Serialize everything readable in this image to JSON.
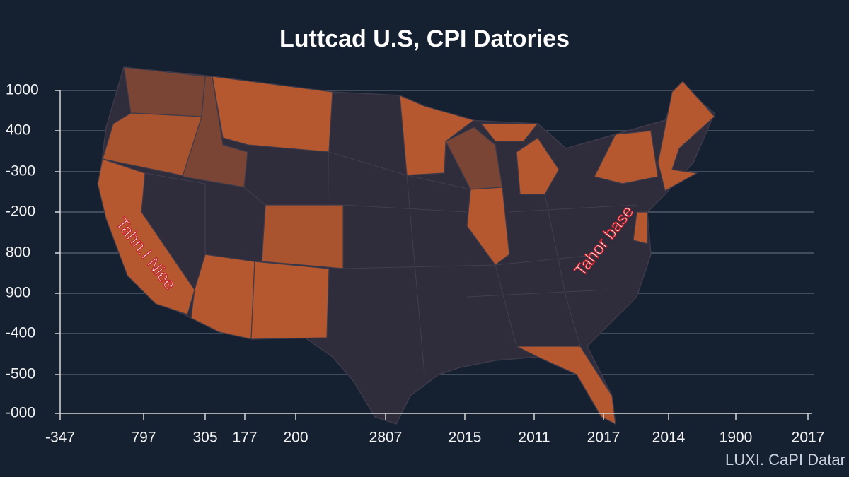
{
  "title": "Luttcad U.S, CPI Datories",
  "y_axis_labels": [
    "1000",
    "400",
    "-300",
    "-200",
    "800",
    "900",
    "-400",
    "-500",
    "-000"
  ],
  "x_axis_labels": [
    "-347",
    "797",
    "305",
    "177",
    "200",
    "2807",
    "2015",
    "2011",
    "2017",
    "2014",
    "1900",
    "2017"
  ],
  "annotations": [
    "Tahn.I Niee",
    "Tahor base"
  ],
  "watermark": "LUXI. CaPI Datar"
}
